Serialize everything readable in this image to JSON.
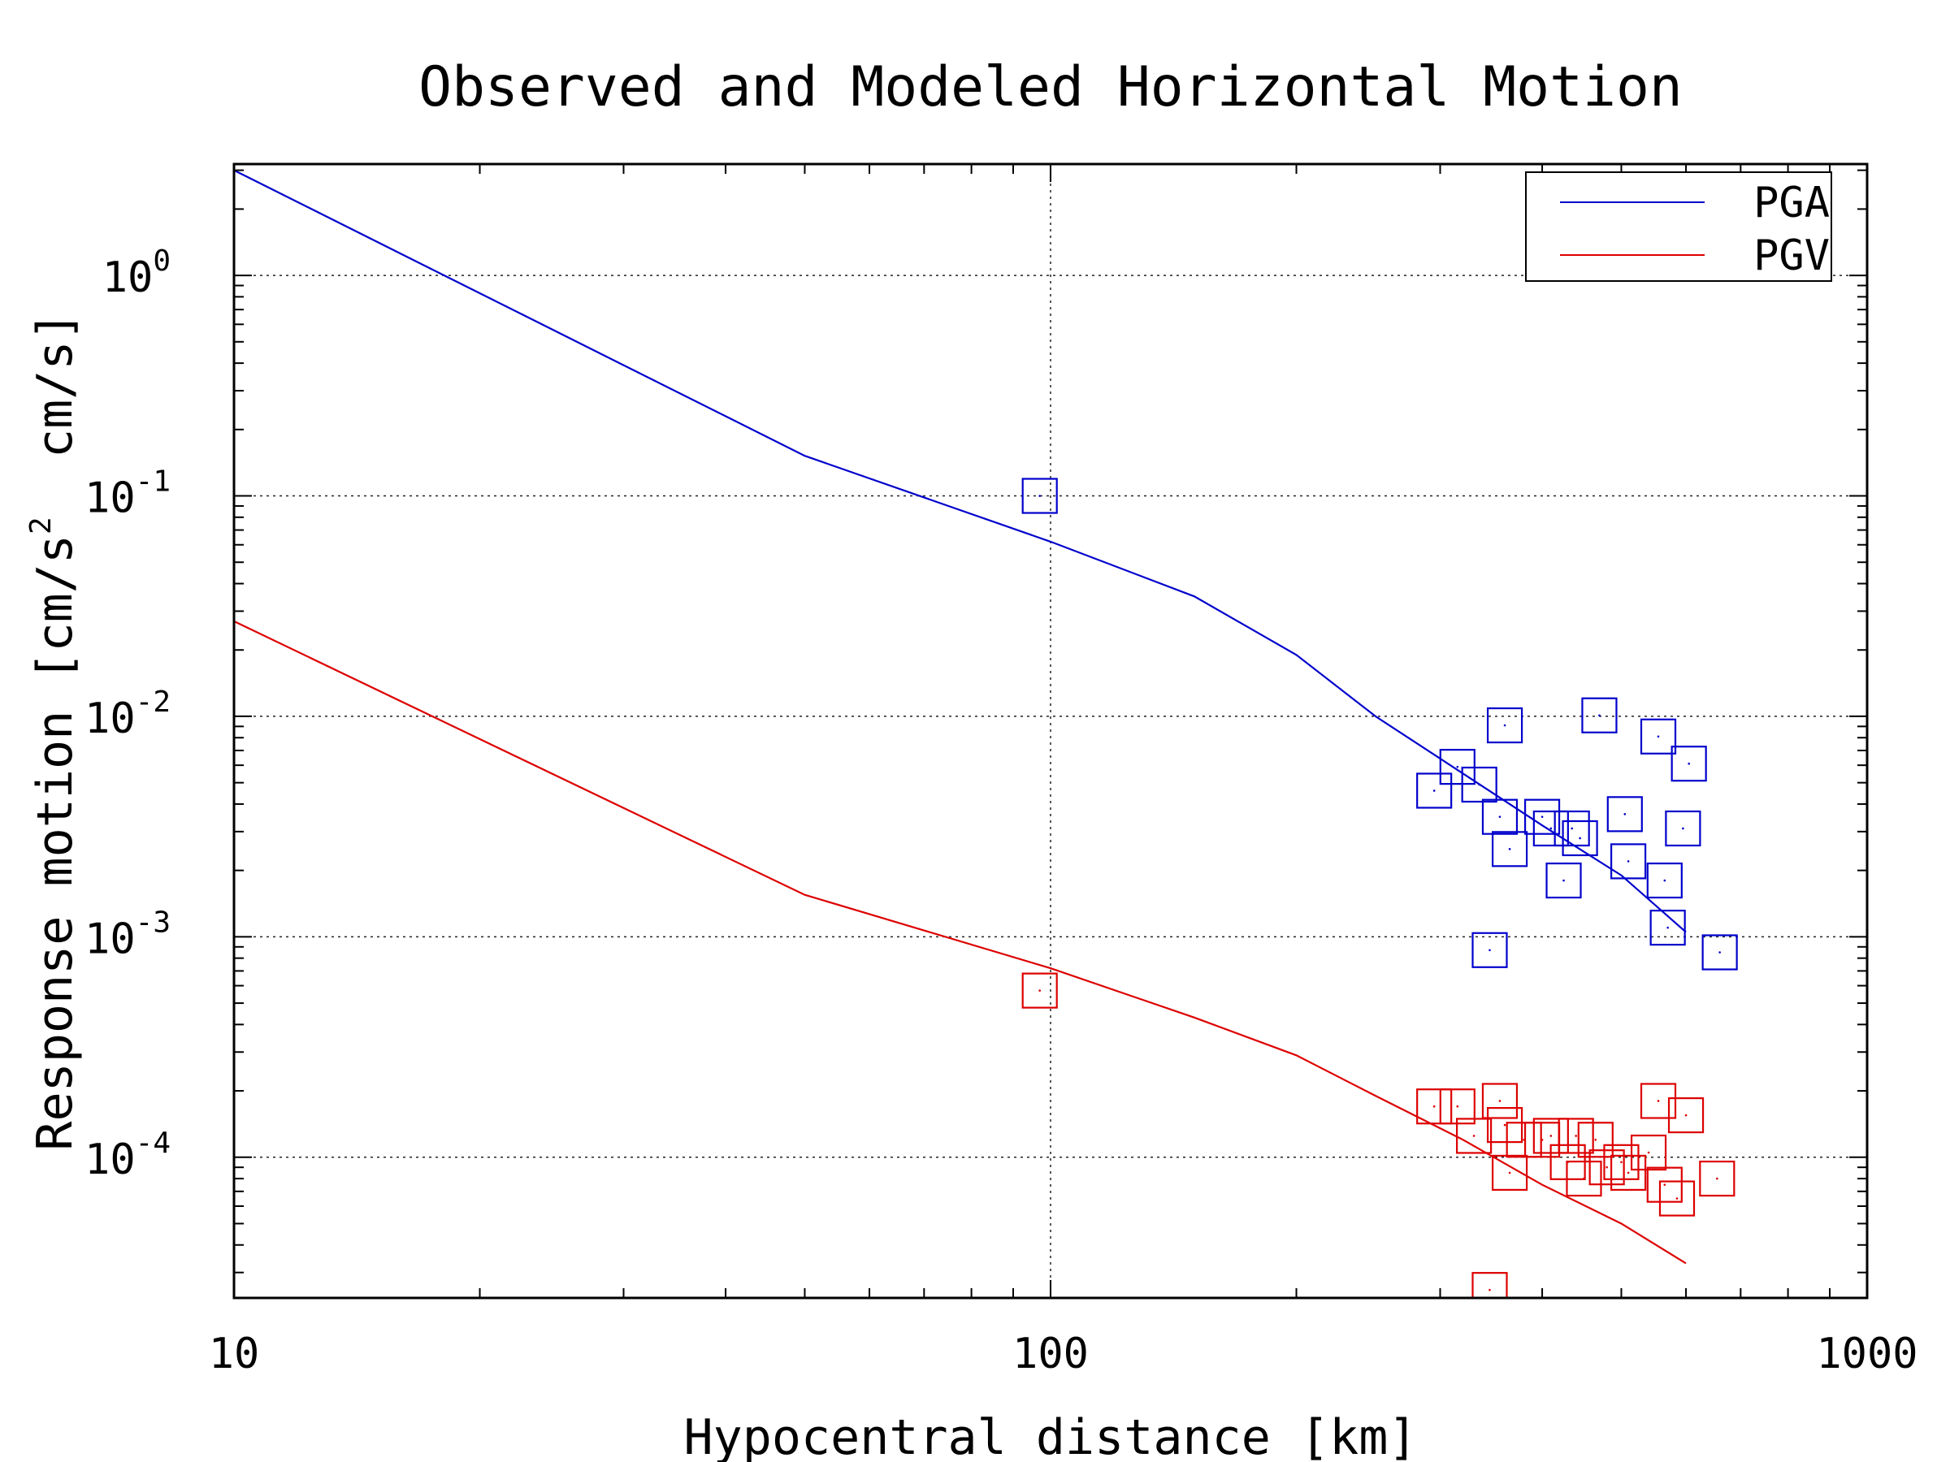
{
  "chart_data": {
    "type": "scatter",
    "title": "Observed and Modeled Horizontal Motion",
    "xlabel": "Hypocentral distance [km]",
    "ylabel": "Response motion [cm/s",
    "ylabel_sup": "2",
    "ylabel_end": "  cm/s]",
    "x_scale": "log",
    "y_scale": "log",
    "xlim": [
      10,
      1000
    ],
    "ylim": [
      2.3e-05,
      3.2
    ],
    "x_ticks": [
      10,
      100,
      1000
    ],
    "x_tick_labels": [
      "10",
      "100",
      "1000"
    ],
    "y_ticks": [
      0.0001,
      0.001,
      0.01,
      0.1,
      1
    ],
    "y_tick_labels": [
      {
        "base": "10",
        "exp": "-4"
      },
      {
        "base": "10",
        "exp": "-3"
      },
      {
        "base": "10",
        "exp": "-2"
      },
      {
        "base": "10",
        "exp": "-1"
      },
      {
        "base": "10",
        "exp": "0"
      }
    ],
    "grid": true,
    "legend_position": "top-right",
    "series": [
      {
        "name": "PGA",
        "color": "#0000cc",
        "line": [
          [
            10,
            3.0
          ],
          [
            50,
            0.152
          ],
          [
            100,
            0.062
          ],
          [
            150,
            0.035
          ],
          [
            200,
            0.019
          ],
          [
            250,
            0.01
          ],
          [
            320,
            0.0055
          ],
          [
            400,
            0.0032
          ],
          [
            500,
            0.0019
          ],
          [
            600,
            0.00105
          ]
        ],
        "points": [
          [
            97,
            0.1
          ],
          [
            295,
            0.0046
          ],
          [
            315,
            0.0059
          ],
          [
            335,
            0.0049
          ],
          [
            345,
            0.00087
          ],
          [
            355,
            0.0035
          ],
          [
            360,
            0.0091
          ],
          [
            365,
            0.0025
          ],
          [
            400,
            0.0035
          ],
          [
            410,
            0.0031
          ],
          [
            425,
            0.0018
          ],
          [
            435,
            0.0031
          ],
          [
            445,
            0.0028
          ],
          [
            470,
            0.0101
          ],
          [
            505,
            0.0036
          ],
          [
            510,
            0.0022
          ],
          [
            555,
            0.0081
          ],
          [
            565,
            0.0018
          ],
          [
            570,
            0.0011
          ],
          [
            595,
            0.0031
          ],
          [
            605,
            0.0061
          ],
          [
            660,
            0.00085
          ]
        ]
      },
      {
        "name": "PGV",
        "color": "#dd0000",
        "line": [
          [
            10,
            0.027
          ],
          [
            50,
            0.00155
          ],
          [
            100,
            0.00072
          ],
          [
            150,
            0.00043
          ],
          [
            200,
            0.00029
          ],
          [
            250,
            0.00019
          ],
          [
            320,
            0.00012
          ],
          [
            400,
            7.5e-05
          ],
          [
            500,
            5e-05
          ],
          [
            600,
            3.3e-05
          ]
        ],
        "points": [
          [
            97,
            0.00057
          ],
          [
            295,
            0.00017
          ],
          [
            315,
            0.00017
          ],
          [
            330,
            0.000125
          ],
          [
            345,
            2.5e-05
          ],
          [
            355,
            0.00018
          ],
          [
            360,
            0.00014
          ],
          [
            365,
            8.5e-05
          ],
          [
            380,
            0.00012
          ],
          [
            400,
            0.00012
          ],
          [
            410,
            0.000125
          ],
          [
            430,
            9.5e-05
          ],
          [
            440,
            0.000125
          ],
          [
            450,
            8e-05
          ],
          [
            465,
            0.00012
          ],
          [
            480,
            9e-05
          ],
          [
            500,
            9.5e-05
          ],
          [
            510,
            8.5e-05
          ],
          [
            540,
            0.000105
          ],
          [
            555,
            0.00018
          ],
          [
            565,
            7.5e-05
          ],
          [
            585,
            6.5e-05
          ],
          [
            600,
            0.000155
          ],
          [
            655,
            8e-05
          ]
        ]
      }
    ]
  }
}
